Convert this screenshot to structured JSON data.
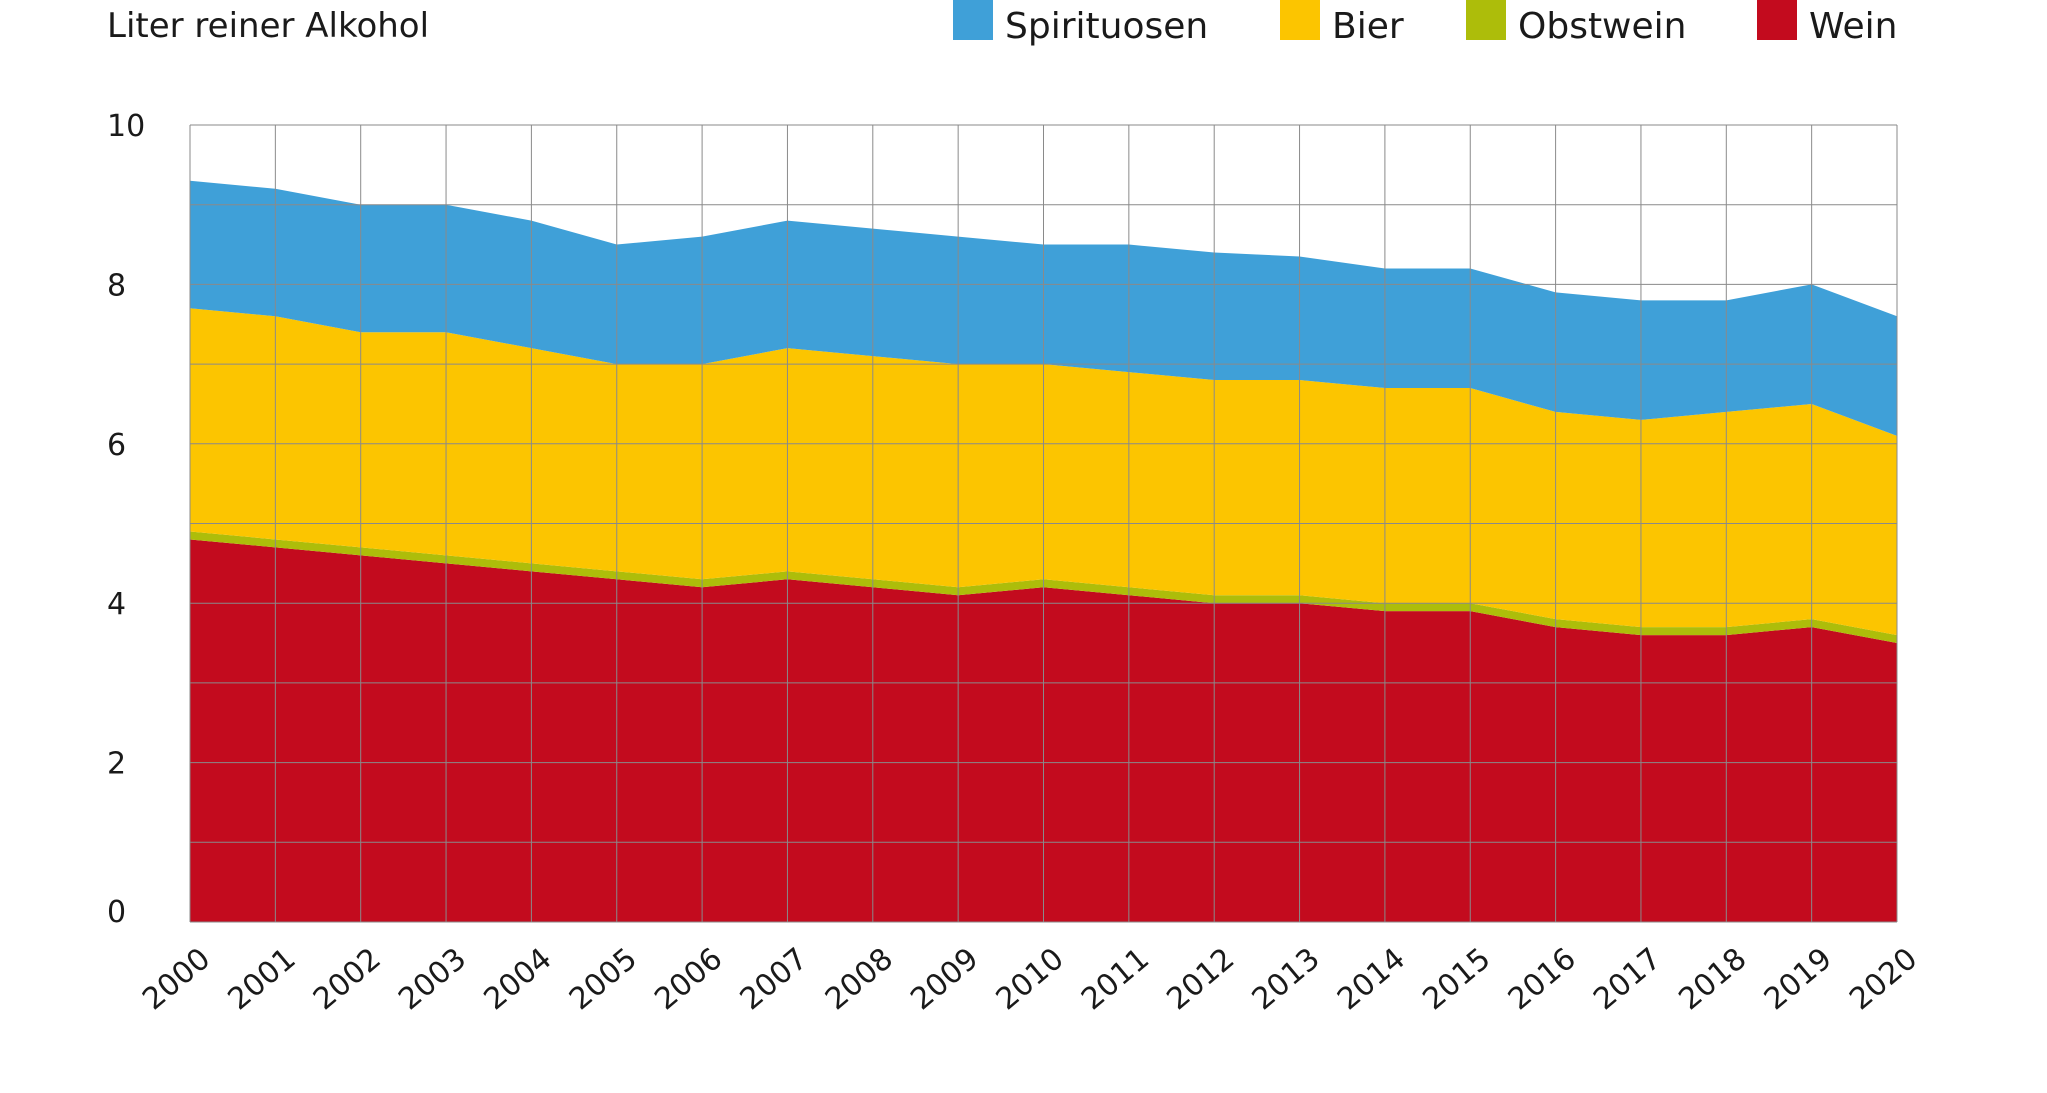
{
  "chart_data": {
    "type": "area",
    "stacked": true,
    "ylabel": "Liter reiner Alkohol",
    "ylim": [
      0,
      10
    ],
    "yticks": [
      0,
      2,
      4,
      6,
      8,
      10
    ],
    "grid": true,
    "legend_position": "top-right",
    "x": [
      "2000",
      "2001",
      "2002",
      "2003",
      "2004",
      "2005",
      "2006",
      "2007",
      "2008",
      "2009",
      "2010",
      "2011",
      "2012",
      "2013",
      "2014",
      "2015",
      "2016",
      "2017",
      "2018",
      "2019",
      "2020"
    ],
    "series": [
      {
        "name": "Wein",
        "color": "#c30b1e",
        "values": [
          4.8,
          4.7,
          4.6,
          4.5,
          4.4,
          4.3,
          4.2,
          4.3,
          4.2,
          4.1,
          4.2,
          4.1,
          4.0,
          4.0,
          3.9,
          3.9,
          3.7,
          3.6,
          3.6,
          3.7,
          3.5
        ]
      },
      {
        "name": "Obstwein",
        "color": "#adbd0a",
        "values": [
          0.1,
          0.1,
          0.1,
          0.1,
          0.1,
          0.1,
          0.1,
          0.1,
          0.1,
          0.1,
          0.1,
          0.1,
          0.1,
          0.1,
          0.1,
          0.1,
          0.1,
          0.1,
          0.1,
          0.1,
          0.1
        ]
      },
      {
        "name": "Bier",
        "color": "#fcc500",
        "values": [
          2.8,
          2.8,
          2.7,
          2.8,
          2.7,
          2.6,
          2.7,
          2.8,
          2.8,
          2.8,
          2.7,
          2.7,
          2.7,
          2.7,
          2.7,
          2.7,
          2.6,
          2.6,
          2.7,
          2.7,
          2.5
        ]
      },
      {
        "name": "Spirituosen",
        "color": "#3fa0d8",
        "values": [
          1.6,
          1.6,
          1.6,
          1.6,
          1.6,
          1.5,
          1.6,
          1.6,
          1.6,
          1.6,
          1.5,
          1.6,
          1.6,
          1.55,
          1.5,
          1.5,
          1.5,
          1.5,
          1.4,
          1.5,
          1.5
        ]
      }
    ],
    "legend_order": [
      "Spirituosen",
      "Bier",
      "Obstwein",
      "Wein"
    ]
  }
}
